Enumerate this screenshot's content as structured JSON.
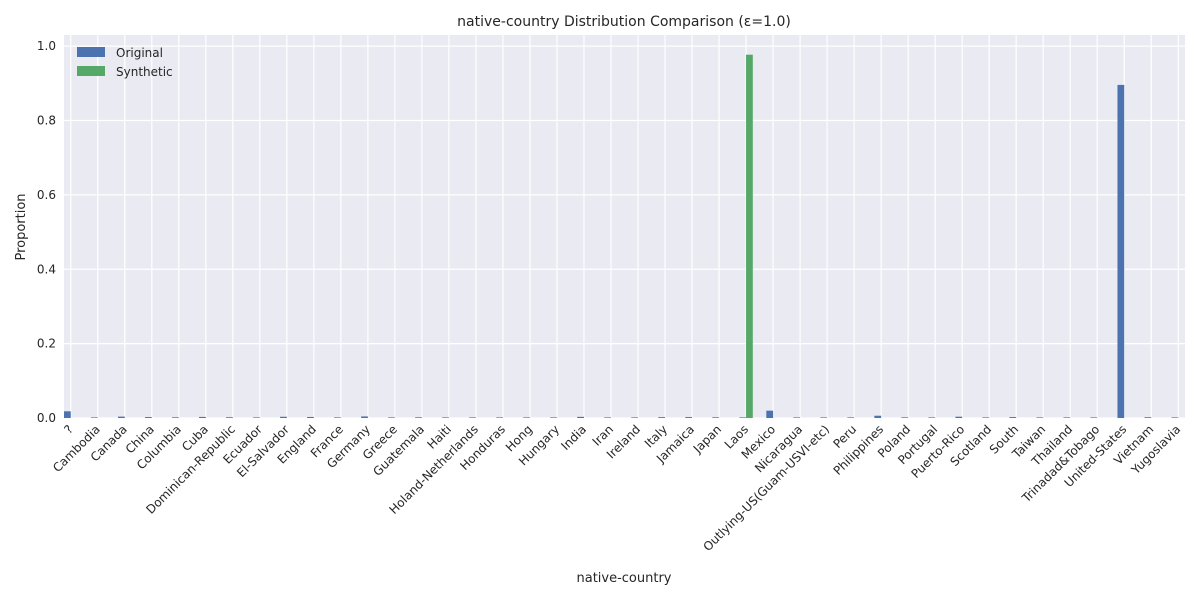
{
  "chart_data": {
    "type": "bar",
    "title": "native-country Distribution Comparison (ε=1.0)",
    "xlabel": "native-country",
    "ylabel": "Proportion",
    "ylim": [
      0,
      1.03
    ],
    "yticks": [
      "0.0",
      "0.2",
      "0.4",
      "0.6",
      "0.8",
      "1.0"
    ],
    "grid": true,
    "legend_position": "top-left",
    "categories": [
      "?",
      "Cambodia",
      "Canada",
      "China",
      "Columbia",
      "Cuba",
      "Dominican-Republic",
      "Ecuador",
      "El-Salvador",
      "England",
      "France",
      "Germany",
      "Greece",
      "Guatemala",
      "Haiti",
      "Holand-Netherlands",
      "Honduras",
      "Hong",
      "Hungary",
      "India",
      "Iran",
      "Ireland",
      "Italy",
      "Jamaica",
      "Japan",
      "Laos",
      "Mexico",
      "Nicaragua",
      "Outlying-US(Guam-USVI-etc)",
      "Peru",
      "Philippines",
      "Poland",
      "Portugal",
      "Puerto-Rico",
      "Scotland",
      "South",
      "Taiwan",
      "Thailand",
      "Trinadad&Tobago",
      "United-States",
      "Vietnam",
      "Yugoslavia"
    ],
    "series": [
      {
        "name": "Original",
        "color": "#4c72b0",
        "values": [
          0.018,
          0.0005,
          0.0037,
          0.0025,
          0.0019,
          0.0029,
          0.0021,
          0.0009,
          0.0033,
          0.0028,
          0.0009,
          0.0042,
          0.0009,
          0.0019,
          0.0013,
          3e-05,
          0.0004,
          0.0006,
          0.0004,
          0.0031,
          0.0013,
          0.0007,
          0.0023,
          0.0025,
          0.0019,
          0.0006,
          0.0197,
          0.001,
          0.0004,
          0.0009,
          0.0061,
          0.0018,
          0.0011,
          0.0035,
          0.0004,
          0.0025,
          0.0016,
          0.0006,
          0.0006,
          0.8958,
          0.0021,
          0.0005
        ]
      },
      {
        "name": "Synthetic",
        "color": "#55a868",
        "values": [
          0,
          0,
          0,
          0,
          0,
          0,
          0,
          0,
          0,
          0,
          0,
          0,
          0,
          0,
          0,
          0,
          0,
          0,
          0,
          0,
          0,
          0,
          0,
          0,
          0,
          0.977,
          0,
          0,
          0,
          0,
          0,
          0,
          0,
          0,
          0,
          0,
          0,
          0,
          0,
          0,
          0,
          0
        ]
      }
    ]
  }
}
